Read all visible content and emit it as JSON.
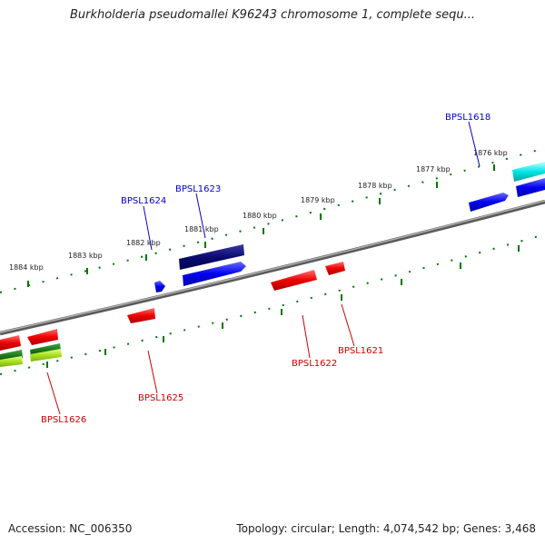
{
  "title": "Burkholderia pseudomallei K96243 chromosome 1, complete sequ...",
  "footer": {
    "accession": "Accession: NC_006350",
    "summary": "Topology: circular; Length: 4,074,542 bp; Genes: 3,468"
  },
  "scale_labels": [
    "1876 kbp",
    "1877 kbp",
    "1878 kbp",
    "1879 kbp",
    "1880 kbp",
    "1881 kbp",
    "1882 kbp",
    "1883 kbp",
    "1884 kbp"
  ],
  "genes_forward": [
    "BPSL1618",
    "BPSL1623",
    "BPSL1624"
  ],
  "genes_reverse": [
    "BPSL1621",
    "BPSL1622",
    "BPSL1625",
    "BPSL1626"
  ],
  "colors": {
    "forward_label": "#0000cc",
    "reverse_label": "#cc0000",
    "backbone": "#888888",
    "ticks": "#007700"
  }
}
